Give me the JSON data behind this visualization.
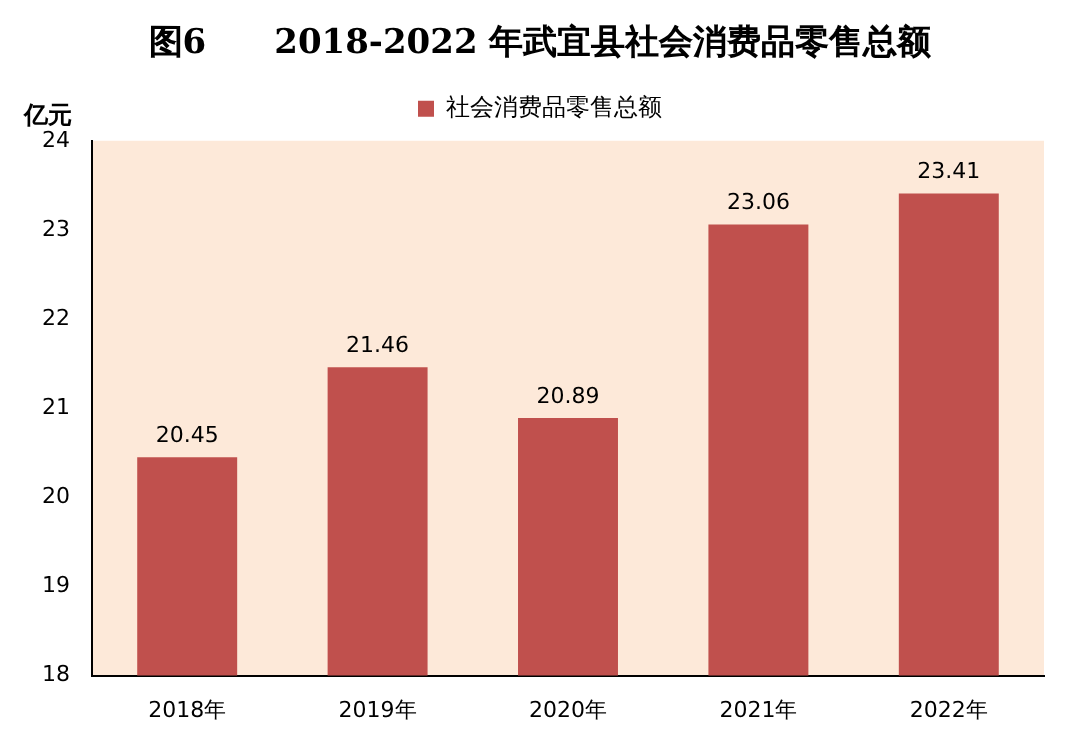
{
  "chart_data": {
    "type": "bar",
    "title": "图6　　2018-2022 年武宜县社会消费品零售总额",
    "ylabel": "亿元",
    "categories": [
      "2018年",
      "2019年",
      "2020年",
      "2021年",
      "2022年"
    ],
    "series": [
      {
        "name": "社会消费品零售总额",
        "color": "#c0504d",
        "values": [
          20.45,
          21.46,
          20.89,
          23.06,
          23.41
        ]
      }
    ],
    "ylim": [
      18,
      24
    ],
    "yticks": [
      18,
      19,
      20,
      21,
      22,
      23,
      24
    ],
    "data_labels": true,
    "grid": false,
    "legend": "top"
  }
}
